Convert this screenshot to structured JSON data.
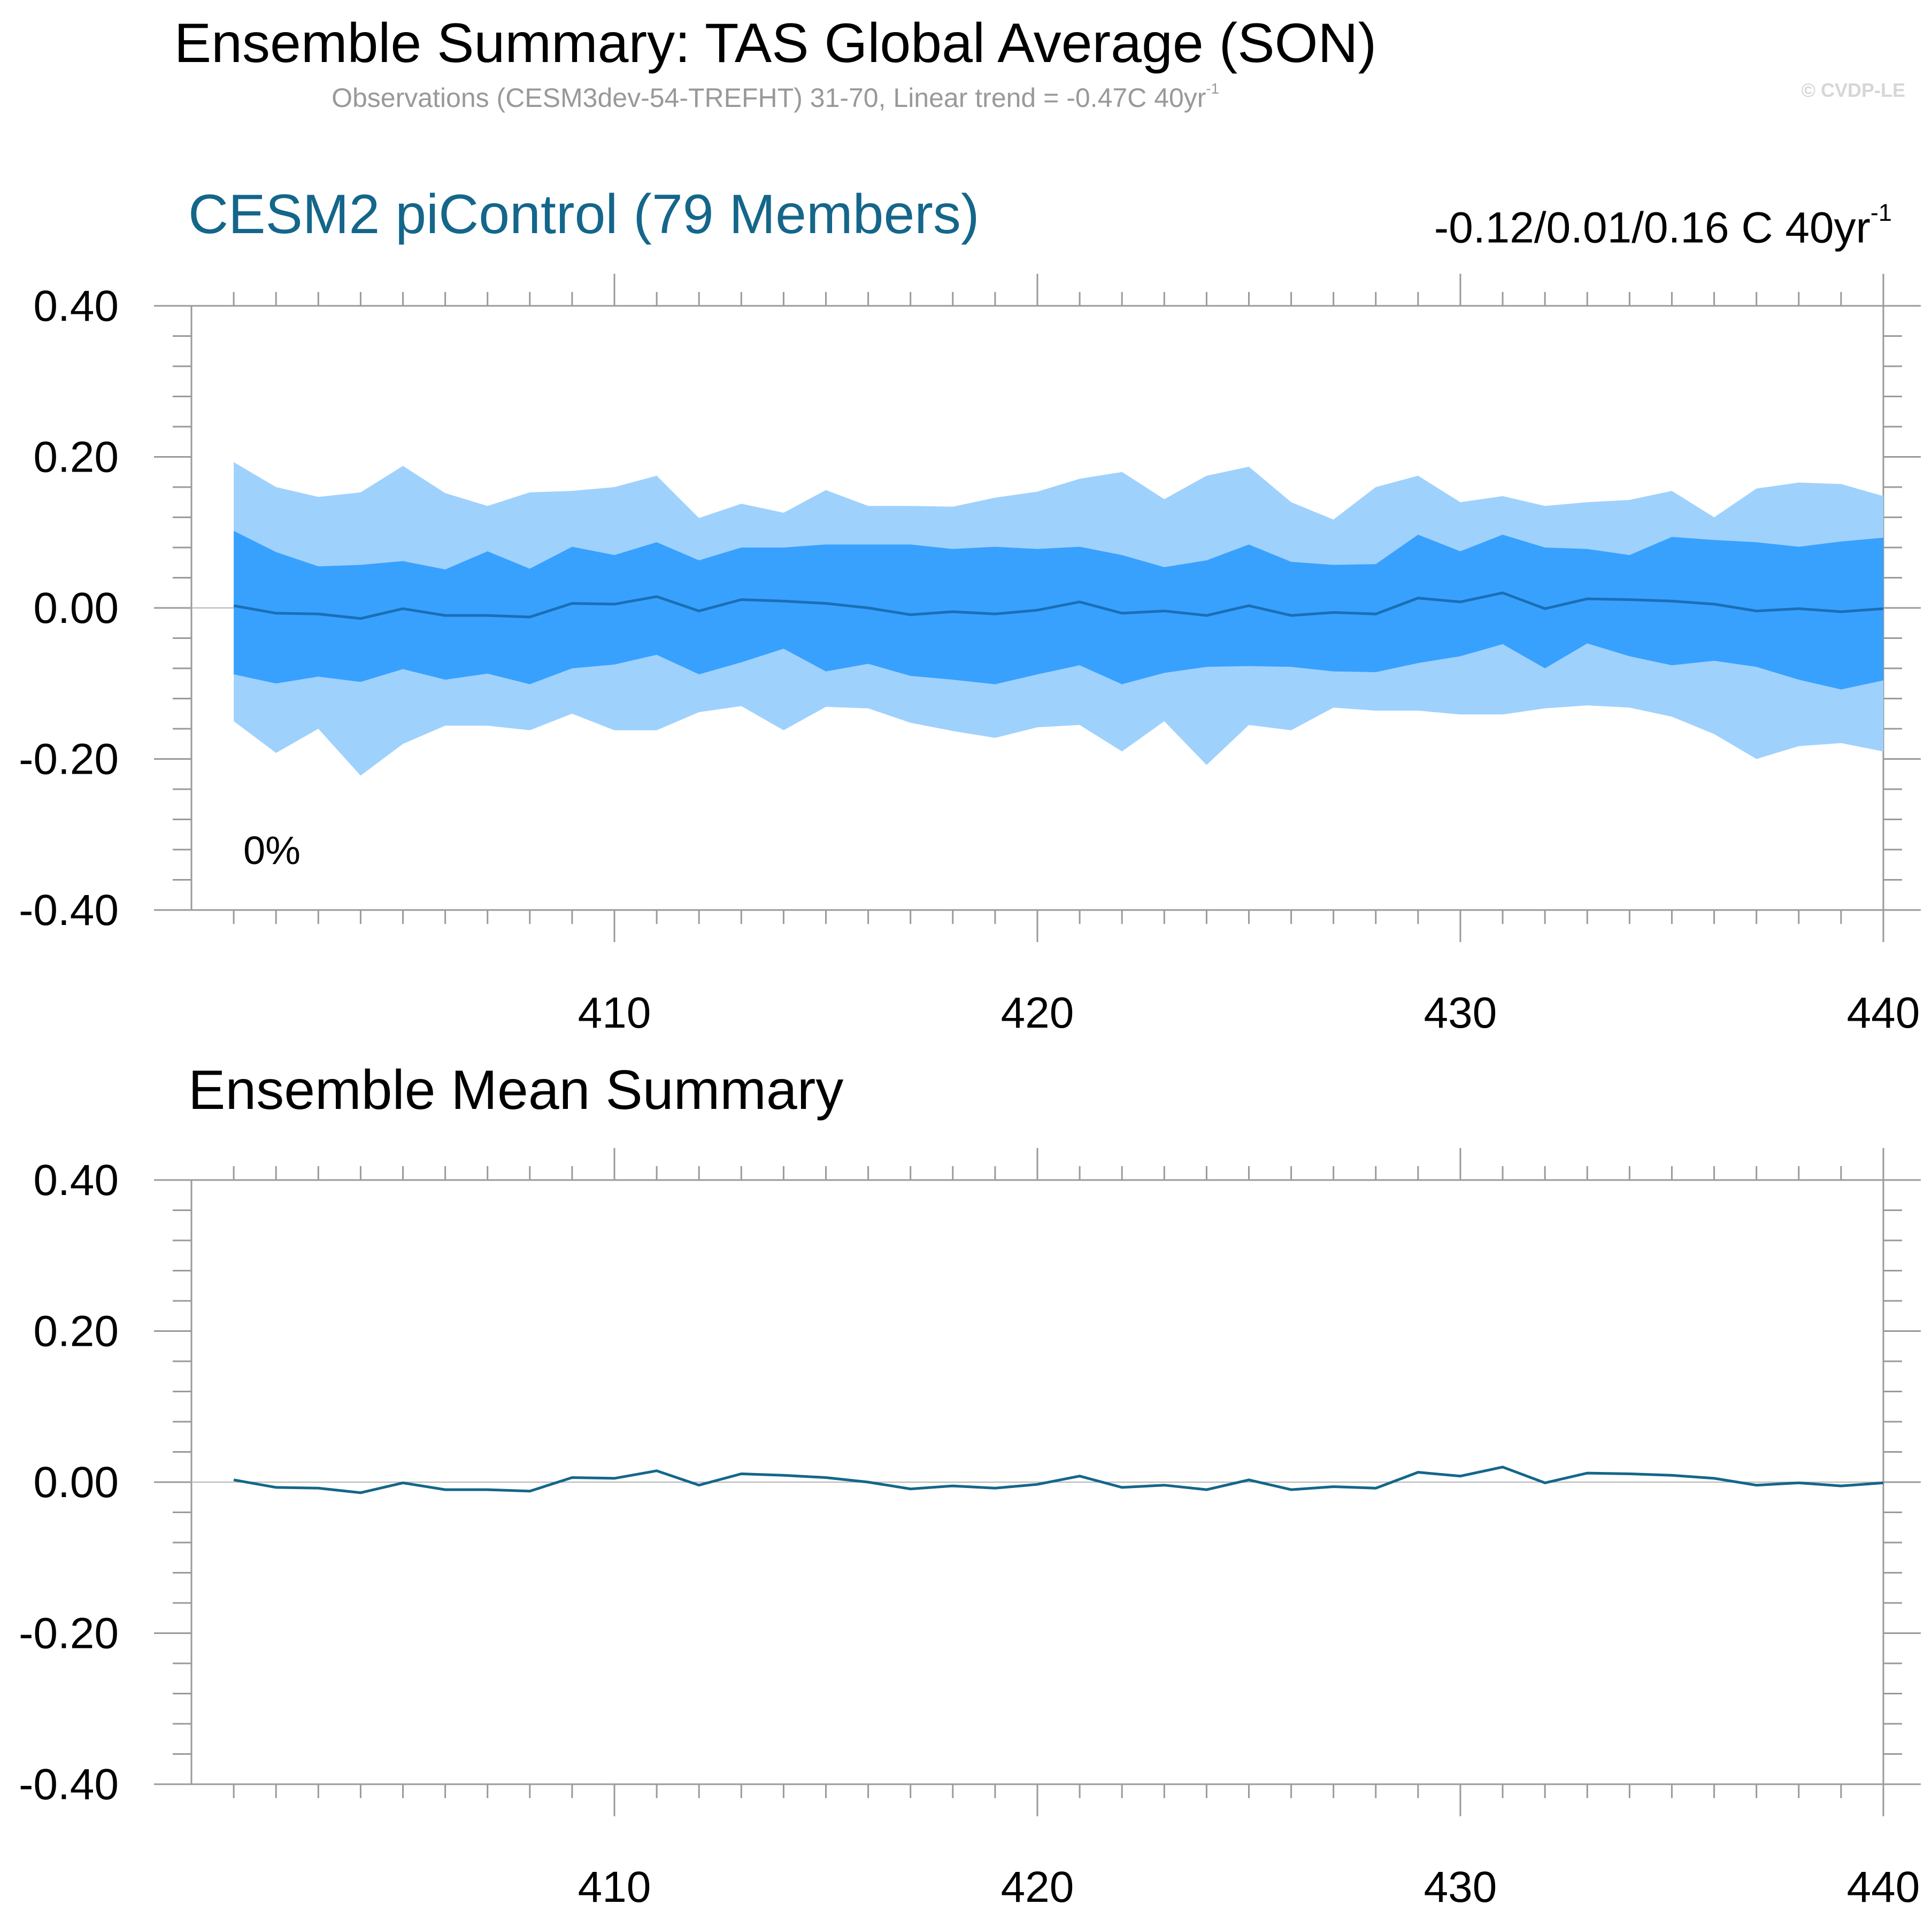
{
  "title": "Ensemble Summary: TAS Global Average (SON)",
  "subtitle": {
    "text": "Observations (CESM3dev-54-TREFHT) 31-70, Linear trend = -0.47C 40yr",
    "superscript": "-1"
  },
  "copyright": "© CVDP-LE",
  "chart_data": [
    {
      "type": "area",
      "title": "CESM2 piControl (79 Members)",
      "trend_label": "-0.12/0.01/0.16 C 40yr",
      "trend_superscript": "-1",
      "annotation": "0%",
      "colors": {
        "outer_band": "#9fd1fd",
        "inner_band": "#38a1fe",
        "mean_line": "#1a6fb5",
        "title": "#14668a"
      },
      "xlim": [
        400,
        440
      ],
      "ylim": [
        -0.4,
        0.4
      ],
      "x_ticks": [
        410,
        420,
        430,
        440
      ],
      "y_ticks": [
        "0.40",
        "0.20",
        "0.00",
        "-0.20",
        "-0.40"
      ],
      "y_tick_values": [
        0.4,
        0.2,
        0.0,
        -0.2,
        -0.4
      ],
      "x": [
        401,
        402,
        403,
        404,
        405,
        406,
        407,
        408,
        409,
        410,
        411,
        412,
        413,
        414,
        415,
        416,
        417,
        418,
        419,
        420,
        421,
        422,
        423,
        424,
        425,
        426,
        427,
        428,
        429,
        430,
        431,
        432,
        433,
        434,
        435,
        436,
        437,
        438,
        439,
        440
      ],
      "series": [
        {
          "role": "max",
          "values": [
            0.193,
            0.16,
            0.147,
            0.153,
            0.188,
            0.152,
            0.135,
            0.153,
            0.155,
            0.16,
            0.175,
            0.119,
            0.138,
            0.126,
            0.156,
            0.135,
            0.135,
            0.134,
            0.146,
            0.154,
            0.171,
            0.18,
            0.144,
            0.175,
            0.187,
            0.14,
            0.117,
            0.16,
            0.175,
            0.14,
            0.148,
            0.135,
            0.14,
            0.143,
            0.155,
            0.12,
            0.158,
            0.166,
            0.164,
            0.148
          ]
        },
        {
          "role": "p90",
          "values": [
            0.102,
            0.074,
            0.055,
            0.057,
            0.062,
            0.051,
            0.075,
            0.052,
            0.081,
            0.07,
            0.087,
            0.063,
            0.08,
            0.08,
            0.084,
            0.084,
            0.084,
            0.078,
            0.081,
            0.078,
            0.081,
            0.07,
            0.054,
            0.063,
            0.084,
            0.061,
            0.057,
            0.058,
            0.097,
            0.075,
            0.097,
            0.08,
            0.078,
            0.07,
            0.094,
            0.09,
            0.087,
            0.081,
            0.088,
            0.093
          ]
        },
        {
          "role": "mean",
          "values": [
            0.003,
            -0.007,
            -0.008,
            -0.014,
            -0.001,
            -0.01,
            -0.01,
            -0.012,
            0.006,
            0.005,
            0.015,
            -0.004,
            0.011,
            0.009,
            0.006,
            0.0,
            -0.009,
            -0.005,
            -0.008,
            -0.003,
            0.008,
            -0.007,
            -0.004,
            -0.01,
            0.003,
            -0.01,
            -0.006,
            -0.008,
            0.013,
            0.008,
            0.02,
            -0.001,
            0.012,
            0.011,
            0.009,
            0.005,
            -0.004,
            -0.001,
            -0.005,
            -0.001
          ]
        },
        {
          "role": "p10",
          "values": [
            -0.088,
            -0.1,
            -0.091,
            -0.098,
            -0.081,
            -0.095,
            -0.087,
            -0.101,
            -0.08,
            -0.075,
            -0.062,
            -0.088,
            -0.072,
            -0.054,
            -0.084,
            -0.074,
            -0.09,
            -0.095,
            -0.101,
            -0.088,
            -0.076,
            -0.101,
            -0.086,
            -0.078,
            -0.077,
            -0.078,
            -0.084,
            -0.085,
            -0.073,
            -0.064,
            -0.048,
            -0.08,
            -0.047,
            -0.064,
            -0.076,
            -0.07,
            -0.078,
            -0.095,
            -0.108,
            -0.096
          ]
        },
        {
          "role": "min",
          "values": [
            -0.15,
            -0.192,
            -0.16,
            -0.222,
            -0.18,
            -0.156,
            -0.156,
            -0.162,
            -0.14,
            -0.162,
            -0.162,
            -0.138,
            -0.13,
            -0.162,
            -0.131,
            -0.133,
            -0.152,
            -0.163,
            -0.172,
            -0.158,
            -0.155,
            -0.19,
            -0.15,
            -0.208,
            -0.155,
            -0.162,
            -0.132,
            -0.136,
            -0.136,
            -0.141,
            -0.141,
            -0.133,
            -0.129,
            -0.132,
            -0.144,
            -0.167,
            -0.2,
            -0.183,
            -0.179,
            -0.19
          ]
        }
      ]
    },
    {
      "type": "line",
      "title": "Ensemble Mean Summary",
      "colors": {
        "line": "#14668a"
      },
      "xlim": [
        400,
        440
      ],
      "ylim": [
        -0.4,
        0.4
      ],
      "x_ticks": [
        410,
        420,
        430,
        440
      ],
      "y_ticks": [
        "0.40",
        "0.20",
        "0.00",
        "-0.20",
        "-0.40"
      ],
      "y_tick_values": [
        0.4,
        0.2,
        0.0,
        -0.2,
        -0.4
      ],
      "x": [
        401,
        402,
        403,
        404,
        405,
        406,
        407,
        408,
        409,
        410,
        411,
        412,
        413,
        414,
        415,
        416,
        417,
        418,
        419,
        420,
        421,
        422,
        423,
        424,
        425,
        426,
        427,
        428,
        429,
        430,
        431,
        432,
        433,
        434,
        435,
        436,
        437,
        438,
        439,
        440
      ],
      "series": [
        {
          "values": [
            0.003,
            -0.007,
            -0.008,
            -0.014,
            -0.001,
            -0.01,
            -0.01,
            -0.012,
            0.006,
            0.005,
            0.015,
            -0.004,
            0.011,
            0.009,
            0.006,
            0.0,
            -0.009,
            -0.005,
            -0.008,
            -0.003,
            0.008,
            -0.007,
            -0.004,
            -0.01,
            0.003,
            -0.01,
            -0.006,
            -0.008,
            0.013,
            0.008,
            0.02,
            -0.001,
            0.012,
            0.011,
            0.009,
            0.005,
            -0.004,
            -0.001,
            -0.005,
            -0.001
          ]
        }
      ]
    }
  ]
}
